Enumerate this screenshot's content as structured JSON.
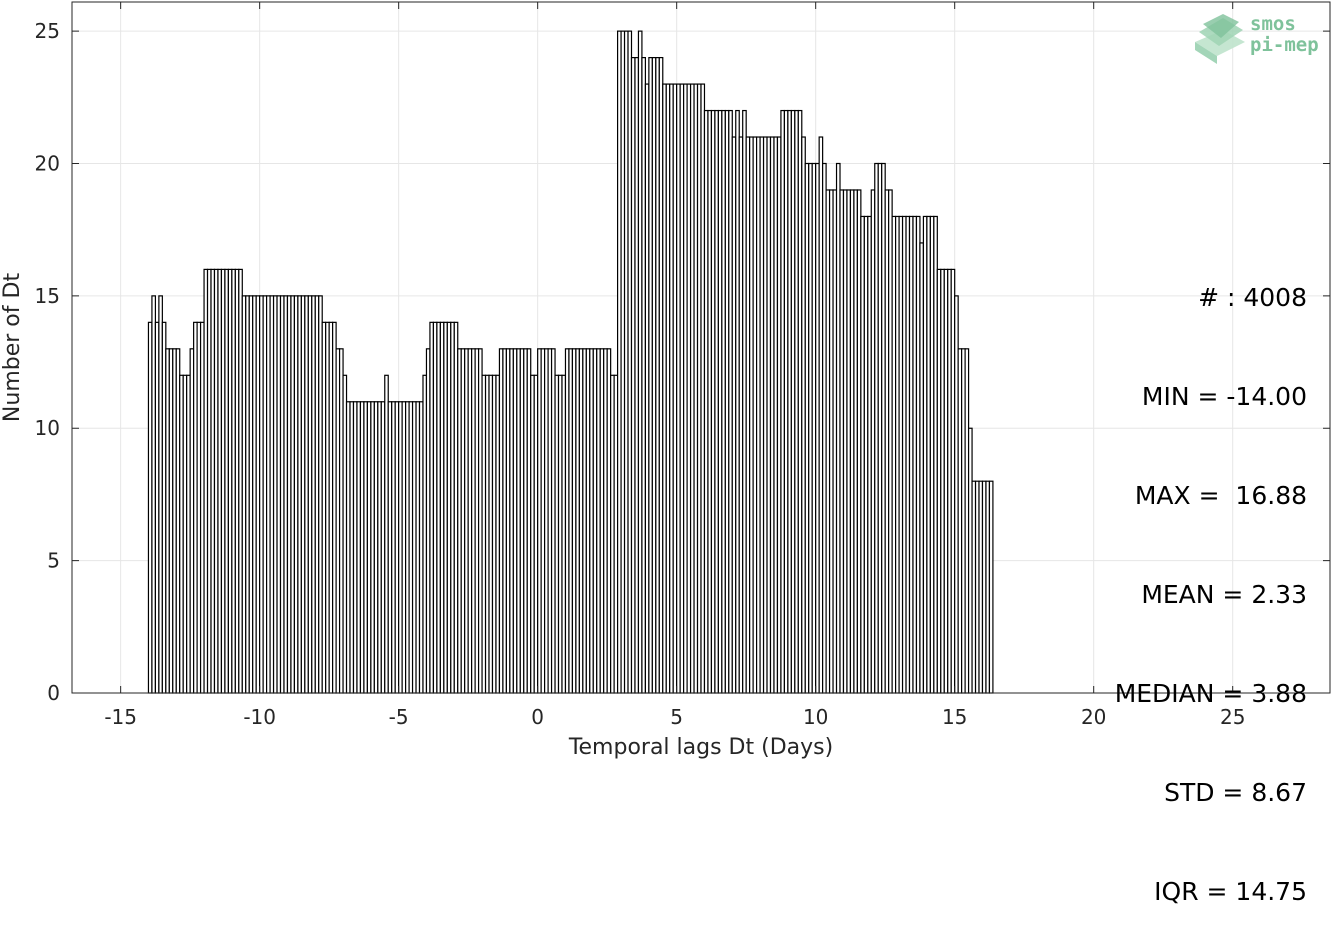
{
  "chart_data": {
    "type": "bar",
    "title": "",
    "xlabel": "Temporal lags Dt (Days)",
    "ylabel": "Number of Dt",
    "xlim": [
      -16.75,
      28.5
    ],
    "ylim": [
      0,
      26.1
    ],
    "xticks": [
      -15,
      -10,
      -5,
      0,
      5,
      10,
      15,
      20,
      25
    ],
    "yticks": [
      0,
      5,
      10,
      15,
      20,
      25
    ],
    "grid": true,
    "bin_start": -14.0,
    "bin_width": 0.125,
    "values": [
      14,
      15,
      14,
      15,
      14,
      13,
      13,
      13,
      13,
      12,
      12,
      12,
      13,
      14,
      14,
      14,
      16,
      16,
      16,
      16,
      16,
      16,
      16,
      16,
      16,
      16,
      16,
      15,
      15,
      15,
      15,
      15,
      15,
      15,
      15,
      15,
      15,
      15,
      15,
      15,
      15,
      15,
      15,
      15,
      15,
      15,
      15,
      15,
      15,
      15,
      14,
      14,
      14,
      14,
      13,
      13,
      12,
      11,
      11,
      11,
      11,
      11,
      11,
      11,
      11,
      11,
      11,
      11,
      12,
      11,
      11,
      11,
      11,
      11,
      11,
      11,
      11,
      11,
      11,
      12,
      13,
      14,
      14,
      14,
      14,
      14,
      14,
      14,
      14,
      13,
      13,
      13,
      13,
      13,
      13,
      13,
      12,
      12,
      12,
      12,
      12,
      13,
      13,
      13,
      13,
      13,
      13,
      13,
      13,
      13,
      12,
      12,
      13,
      13,
      13,
      13,
      13,
      12,
      12,
      12,
      13,
      13,
      13,
      13,
      13,
      13,
      13,
      13,
      13,
      13,
      13,
      13,
      13,
      12,
      12,
      25,
      25,
      25,
      25,
      24,
      24,
      25,
      24,
      23,
      24,
      24,
      24,
      24,
      23,
      23,
      23,
      23,
      23,
      23,
      23,
      23,
      23,
      23,
      23,
      23,
      22,
      22,
      22,
      22,
      22,
      22,
      22,
      22,
      21,
      22,
      21,
      22,
      21,
      21,
      21,
      21,
      21,
      21,
      21,
      21,
      21,
      21,
      22,
      22,
      22,
      22,
      22,
      22,
      21,
      20,
      20,
      20,
      20,
      21,
      20,
      19,
      19,
      19,
      20,
      19,
      19,
      19,
      19,
      19,
      19,
      18,
      18,
      18,
      19,
      20,
      20,
      20,
      19,
      19,
      18,
      18,
      18,
      18,
      18,
      18,
      18,
      18,
      17,
      18,
      18,
      18,
      18,
      16,
      16,
      16,
      16,
      16,
      15,
      13,
      13,
      13,
      10,
      8,
      8,
      8,
      8,
      8,
      8
    ],
    "legend": "none"
  },
  "stats": {
    "count": "# : 4008",
    "min": "MIN = -14.00",
    "max": "MAX =  16.88",
    "mean": "MEAN = 2.33",
    "median": "MEDIAN = 3.88",
    "std": "STD = 8.67",
    "iqr": "IQR = 14.75"
  },
  "logo": {
    "line1": "smos",
    "line2": "pi-mep",
    "color": "#7fc29b"
  },
  "colors": {
    "bar_fill": "#ffffff",
    "bar_edge": "#000000",
    "grid": "#e6e6e6",
    "axis": "#262626"
  }
}
